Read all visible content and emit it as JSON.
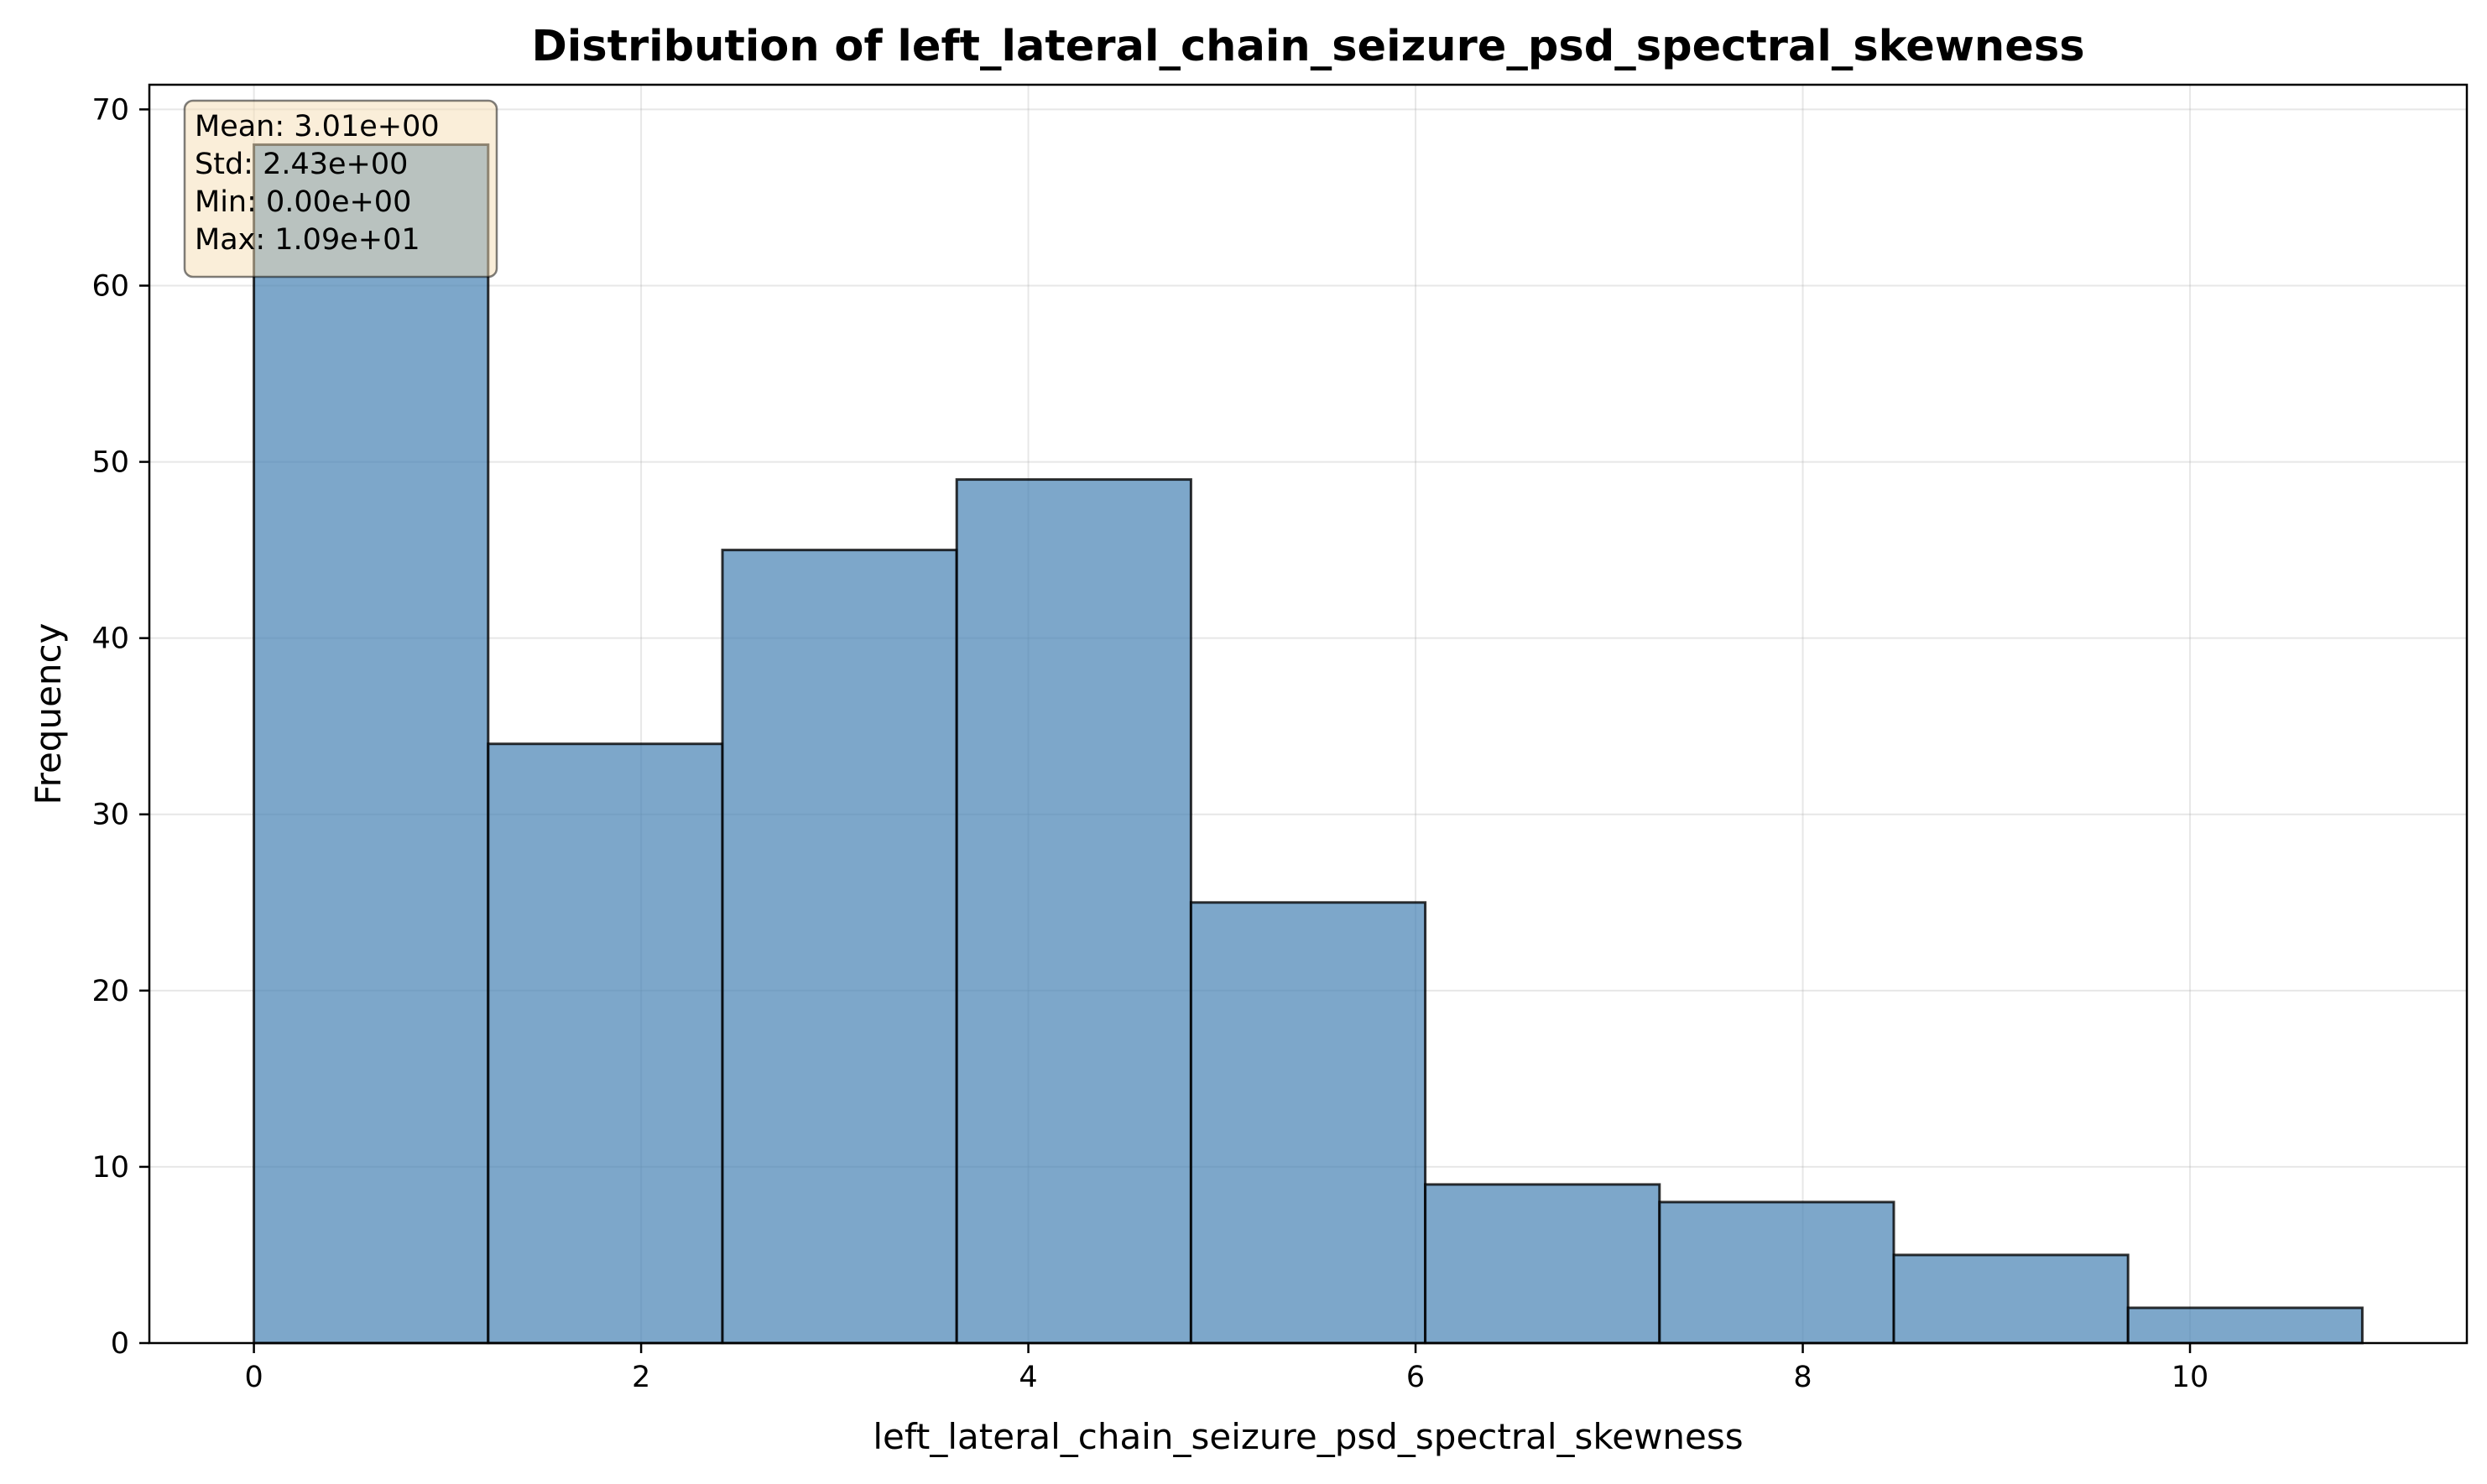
{
  "chart_data": {
    "type": "bar",
    "title": "Distribution of left_lateral_chain_seizure_psd_spectral_skewness",
    "xlabel": "left_lateral_chain_seizure_psd_spectral_skewness",
    "ylabel": "Frequency",
    "bin_edges": [
      0.0,
      1.21,
      2.42,
      3.63,
      4.84,
      6.05,
      7.26,
      8.47,
      9.68,
      10.89
    ],
    "values": [
      68,
      34,
      45,
      49,
      25,
      9,
      8,
      5,
      2
    ],
    "xlim": [
      -0.54,
      11.43
    ],
    "ylim": [
      0,
      71.4
    ],
    "xticks": [
      0,
      2,
      4,
      6,
      8,
      10
    ],
    "xtick_labels": [
      "0",
      "2",
      "4",
      "6",
      "8",
      "10"
    ],
    "yticks": [
      0,
      10,
      20,
      30,
      40,
      50,
      60,
      70
    ],
    "ytick_labels": [
      "0",
      "10",
      "20",
      "30",
      "40",
      "50",
      "60",
      "70"
    ],
    "grid": true,
    "bar_color": "#4682B4",
    "bar_edge_color": "#000000",
    "stats_box_color": "#F5DEB3",
    "stats": {
      "mean": "Mean: 3.01e+00",
      "std": "Std: 2.43e+00",
      "min": "Min: 0.00e+00",
      "max": "Max: 1.09e+01"
    }
  }
}
